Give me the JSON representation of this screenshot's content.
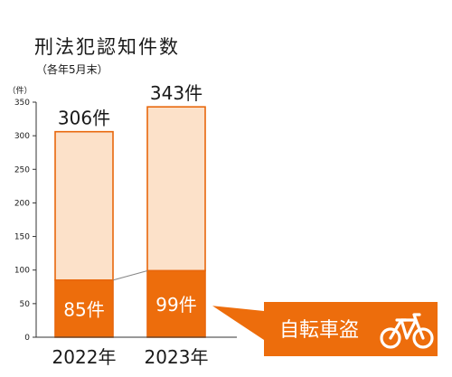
{
  "chart_data": {
    "type": "bar",
    "title": "刑法犯認知件数",
    "subtitle": "（各年5月末）",
    "ylabel": "（件）",
    "ylim": [
      0,
      350
    ],
    "yticks": [
      "0",
      "50",
      "100",
      "150",
      "200",
      "250",
      "300",
      "350"
    ],
    "categories": [
      "2022年",
      "2023年"
    ],
    "series": [
      {
        "name": "自転車盗",
        "values": [
          85,
          99
        ],
        "labels": [
          "85件",
          "99件"
        ]
      },
      {
        "values": [
          221,
          244
        ]
      }
    ],
    "totals": [
      306,
      343
    ],
    "total_labels": [
      "306件",
      "343件"
    ],
    "callout": {
      "text": "自転車盗",
      "icon": "bicycle-icon"
    },
    "colors": {
      "stack_bottom": "#ed6d0c",
      "stack_top": "#fce1c9",
      "border": "#e8670c",
      "callout_bg": "#ed6d0c",
      "axis": "#333333"
    },
    "grid": false,
    "legend": "callout-right"
  }
}
